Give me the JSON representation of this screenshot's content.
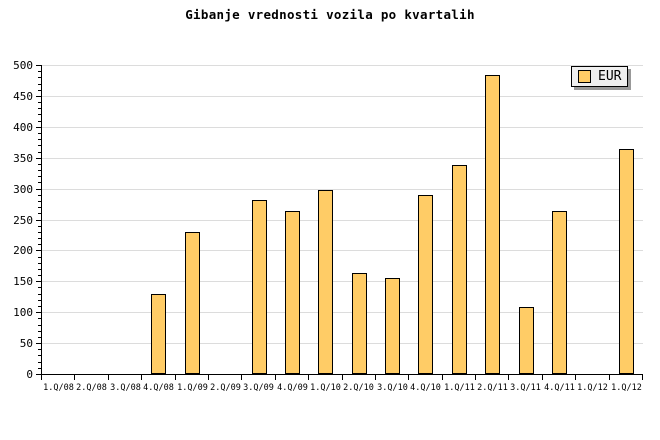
{
  "chart_data": {
    "type": "bar",
    "title": "Gibanje vrednosti vozila po kvartalih",
    "categories": [
      "1.Q/08",
      "2.Q/08",
      "3.Q/08",
      "4.Q/08",
      "1.Q/09",
      "2.Q/09",
      "3.Q/09",
      "4.Q/09",
      "1.Q/10",
      "2.Q/10",
      "3.Q/10",
      "4.Q/10",
      "1.Q/11",
      "2.Q/11",
      "3.Q/11",
      "4.Q/11",
      "1.Q/12",
      "1.Q/12"
    ],
    "series": [
      {
        "name": "EUR",
        "color": "#FFCC66",
        "values": [
          null,
          null,
          null,
          130,
          230,
          null,
          282,
          264,
          298,
          163,
          155,
          289,
          338,
          484,
          109,
          264,
          null,
          364
        ]
      }
    ],
    "xlabel": "",
    "ylabel": "",
    "ylim": [
      0,
      500
    ],
    "ytick_major": 50,
    "ytick_minor": 10,
    "grid": "horizontal",
    "legend_position": "top-right",
    "colors": {
      "background": "#FFFFFF",
      "bar_fill": "#FFCC66",
      "bar_border": "#000000",
      "gridline": "#DCDCDC",
      "axis": "#000000",
      "text": "#000000",
      "legend_background": "#EFEFEF",
      "legend_border": "#000000",
      "legend_shadow": "#999999"
    }
  }
}
